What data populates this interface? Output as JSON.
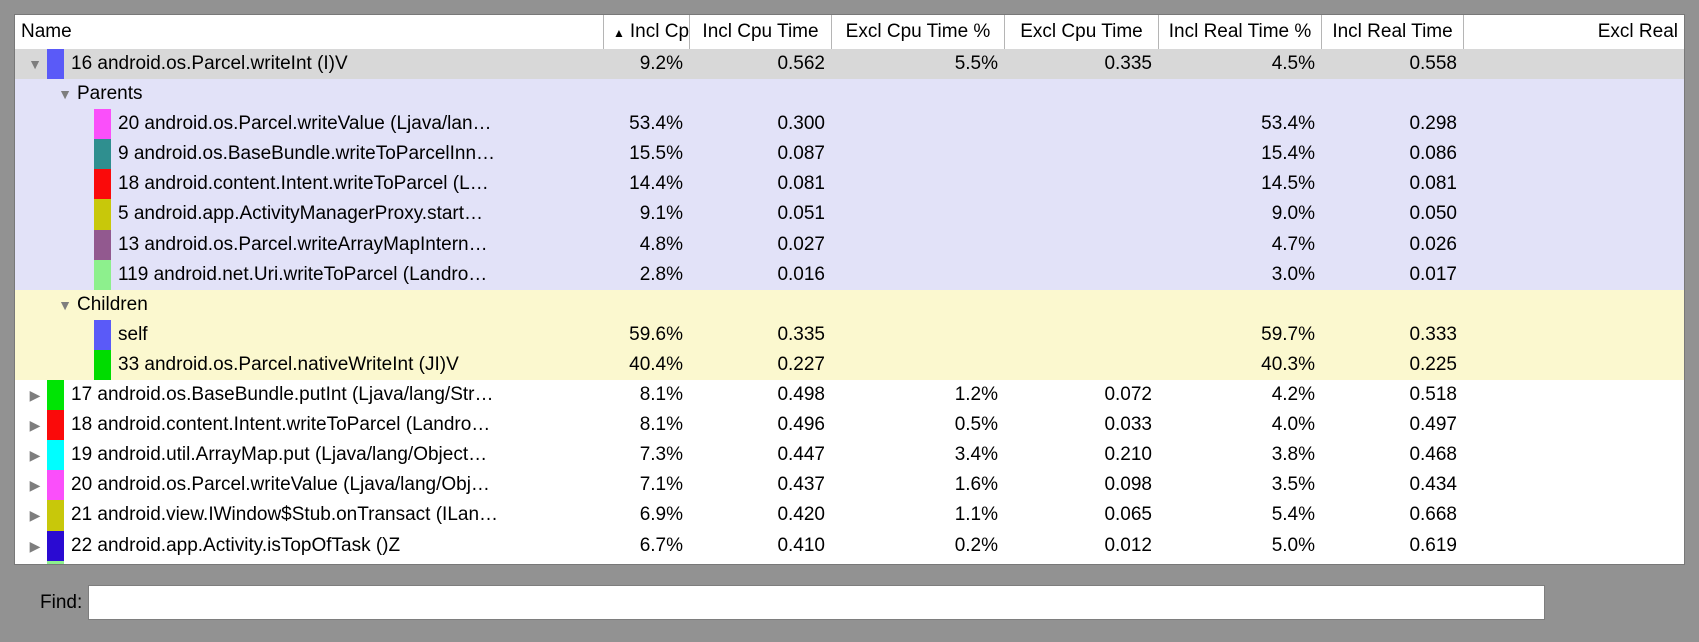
{
  "window": {
    "background": "#929292"
  },
  "icons": {
    "expanded": "▼",
    "collapsed": "▶",
    "sort_asc": "▲"
  },
  "header": {
    "columns": [
      {
        "label": "Name",
        "align": "left"
      },
      {
        "label": "Incl Cpu Tir",
        "align": "left",
        "sorted": true
      },
      {
        "label": "Incl Cpu Time",
        "align": "center"
      },
      {
        "label": "Excl Cpu Time %",
        "align": "center"
      },
      {
        "label": "Excl Cpu Time",
        "align": "center"
      },
      {
        "label": "Incl Real Time %",
        "align": "center"
      },
      {
        "label": "Incl Real Time",
        "align": "center"
      },
      {
        "label": "Excl Real",
        "align": "right"
      }
    ]
  },
  "rows": [
    {
      "kind": "method",
      "expanded": true,
      "bg": "selected",
      "swatch": "#5a5af8",
      "name": "16 android.os.Parcel.writeInt (I)V",
      "values": [
        "9.2%",
        "0.562",
        "5.5%",
        "0.335",
        "4.5%",
        "0.558"
      ]
    },
    {
      "kind": "section",
      "expanded": true,
      "bg": "parents",
      "name": "Parents",
      "values": [
        "",
        "",
        "",
        "",
        "",
        ""
      ]
    },
    {
      "kind": "sub",
      "bg": "parents",
      "swatch": "#fa4ffa",
      "name": "20 android.os.Parcel.writeValue (Ljava/lan…",
      "values": [
        "53.4%",
        "0.300",
        "",
        "",
        "53.4%",
        "0.298"
      ]
    },
    {
      "kind": "sub",
      "bg": "parents",
      "swatch": "#2f8f8f",
      "name": "9 android.os.BaseBundle.writeToParcelInn…",
      "values": [
        "15.5%",
        "0.087",
        "",
        "",
        "15.4%",
        "0.086"
      ]
    },
    {
      "kind": "sub",
      "bg": "parents",
      "swatch": "#fa0a0a",
      "name": "18 android.content.Intent.writeToParcel (L…",
      "values": [
        "14.4%",
        "0.081",
        "",
        "",
        "14.5%",
        "0.081"
      ]
    },
    {
      "kind": "sub",
      "bg": "parents",
      "swatch": "#c8c80a",
      "name": "5 android.app.ActivityManagerProxy.start…",
      "values": [
        "9.1%",
        "0.051",
        "",
        "",
        "9.0%",
        "0.050"
      ]
    },
    {
      "kind": "sub",
      "bg": "parents",
      "swatch": "#92598f",
      "name": "13 android.os.Parcel.writeArrayMapIntern…",
      "values": [
        "4.8%",
        "0.027",
        "",
        "",
        "4.7%",
        "0.026"
      ]
    },
    {
      "kind": "sub",
      "bg": "parents",
      "swatch": "#8df08d",
      "name": "119 android.net.Uri.writeToParcel (Landro…",
      "values": [
        "2.8%",
        "0.016",
        "",
        "",
        "3.0%",
        "0.017"
      ]
    },
    {
      "kind": "section",
      "expanded": true,
      "bg": "children",
      "name": "Children",
      "values": [
        "",
        "",
        "",
        "",
        "",
        ""
      ]
    },
    {
      "kind": "sub",
      "bg": "children",
      "swatch": "#5a5af8",
      "name": "self",
      "values": [
        "59.6%",
        "0.335",
        "",
        "",
        "59.7%",
        "0.333"
      ]
    },
    {
      "kind": "sub",
      "bg": "children",
      "swatch": "#00dc00",
      "name": "33 android.os.Parcel.nativeWriteInt (JI)V",
      "values": [
        "40.4%",
        "0.227",
        "",
        "",
        "40.3%",
        "0.225"
      ]
    },
    {
      "kind": "method",
      "expanded": false,
      "bg": "white",
      "swatch": "#00e404",
      "name": "17 android.os.BaseBundle.putInt (Ljava/lang/Str…",
      "values": [
        "8.1%",
        "0.498",
        "1.2%",
        "0.072",
        "4.2%",
        "0.518"
      ]
    },
    {
      "kind": "method",
      "expanded": false,
      "bg": "white",
      "swatch": "#fa0a0a",
      "name": "18 android.content.Intent.writeToParcel (Landro…",
      "values": [
        "8.1%",
        "0.496",
        "0.5%",
        "0.033",
        "4.0%",
        "0.497"
      ]
    },
    {
      "kind": "method",
      "expanded": false,
      "bg": "white",
      "swatch": "#00feff",
      "name": "19 android.util.ArrayMap.put (Ljava/lang/Object…",
      "values": [
        "7.3%",
        "0.447",
        "3.4%",
        "0.210",
        "3.8%",
        "0.468"
      ]
    },
    {
      "kind": "method",
      "expanded": false,
      "bg": "white",
      "swatch": "#fa4ffa",
      "name": "20 android.os.Parcel.writeValue (Ljava/lang/Obj…",
      "values": [
        "7.1%",
        "0.437",
        "1.6%",
        "0.098",
        "3.5%",
        "0.434"
      ]
    },
    {
      "kind": "method",
      "expanded": false,
      "bg": "white",
      "swatch": "#c8c80a",
      "name": "21 android.view.IWindow$Stub.onTransact (ILan…",
      "values": [
        "6.9%",
        "0.420",
        "1.1%",
        "0.065",
        "5.4%",
        "0.668"
      ]
    },
    {
      "kind": "method",
      "expanded": false,
      "bg": "white",
      "swatch": "#2a0ad2",
      "name": "22 android.app.Activity.isTopOfTask ()Z",
      "values": [
        "6.7%",
        "0.410",
        "0.2%",
        "0.012",
        "5.0%",
        "0.619"
      ]
    },
    {
      "kind": "partial",
      "expanded": false,
      "bg": "white",
      "swatch": "#8df08d",
      "name": "",
      "values": [
        "",
        "",
        "",
        "",
        "",
        ""
      ]
    }
  ],
  "find": {
    "label": "Find:",
    "value": ""
  }
}
